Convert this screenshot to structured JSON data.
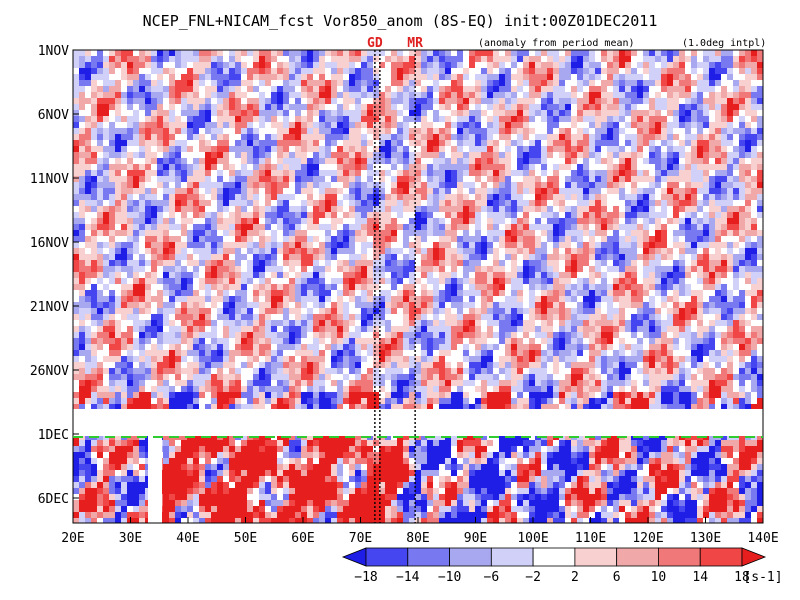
{
  "chart_data": {
    "type": "heatmap",
    "title": "NCEP_FNL+NICAM_fcst Vor850_anom (8S-EQ) init:00Z01DEC2011",
    "note_left": "(anomaly from period mean)",
    "note_right": "(1.0deg intpl)",
    "xticks": [
      "20E",
      "30E",
      "40E",
      "50E",
      "60E",
      "70E",
      "80E",
      "90E",
      "100E",
      "110E",
      "120E",
      "130E",
      "140E"
    ],
    "xlim": [
      20,
      140
    ],
    "yticks": [
      "1NOV",
      "6NOV",
      "11NOV",
      "16NOV",
      "21NOV",
      "26NOV",
      "1DEC",
      "6DEC"
    ],
    "markers": [
      {
        "label": "GD",
        "lon": 72.5
      },
      {
        "label": "MR",
        "lon": 79.5
      }
    ],
    "init_line_label": "1DEC",
    "colorbar": {
      "levels": [
        "-18",
        "-14",
        "-10",
        "-6",
        "-2",
        "2",
        "6",
        "10",
        "14",
        "18"
      ],
      "unit": "[s-1]",
      "colors": [
        "#1e1ee6",
        "#4646f0",
        "#7878f0",
        "#a8a8f0",
        "#d0d0f8",
        "#ffffff",
        "#f8d0d0",
        "#f0a8a8",
        "#f07878",
        "#f04646",
        "#e61e1e"
      ]
    }
  }
}
